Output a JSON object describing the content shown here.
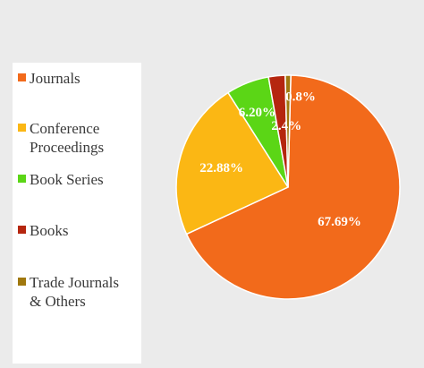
{
  "chart_data": {
    "type": "pie",
    "title": "",
    "slices": [
      {
        "label": "Journals",
        "label_lines": [
          "Journals"
        ],
        "value": 67.69,
        "display": "67.69%",
        "color": "#f26a1b"
      },
      {
        "label": "Conference Proceedings",
        "label_lines": [
          "Conference",
          "Proceedings"
        ],
        "value": 22.88,
        "display": "22.88%",
        "color": "#fbb714"
      },
      {
        "label": "Book Series",
        "label_lines": [
          "Book Series"
        ],
        "value": 6.2,
        "display": "6.20%",
        "color": "#5bd616"
      },
      {
        "label": "Books",
        "label_lines": [
          "Books"
        ],
        "value": 2.4,
        "display": "2.4%",
        "color": "#b5260f"
      },
      {
        "label": "Trade Journals & Others",
        "label_lines": [
          "Trade Journals",
          "& Others"
        ],
        "value": 0.8,
        "display": "0.8%",
        "color": "#a0780e"
      }
    ],
    "legend_position": "left"
  }
}
